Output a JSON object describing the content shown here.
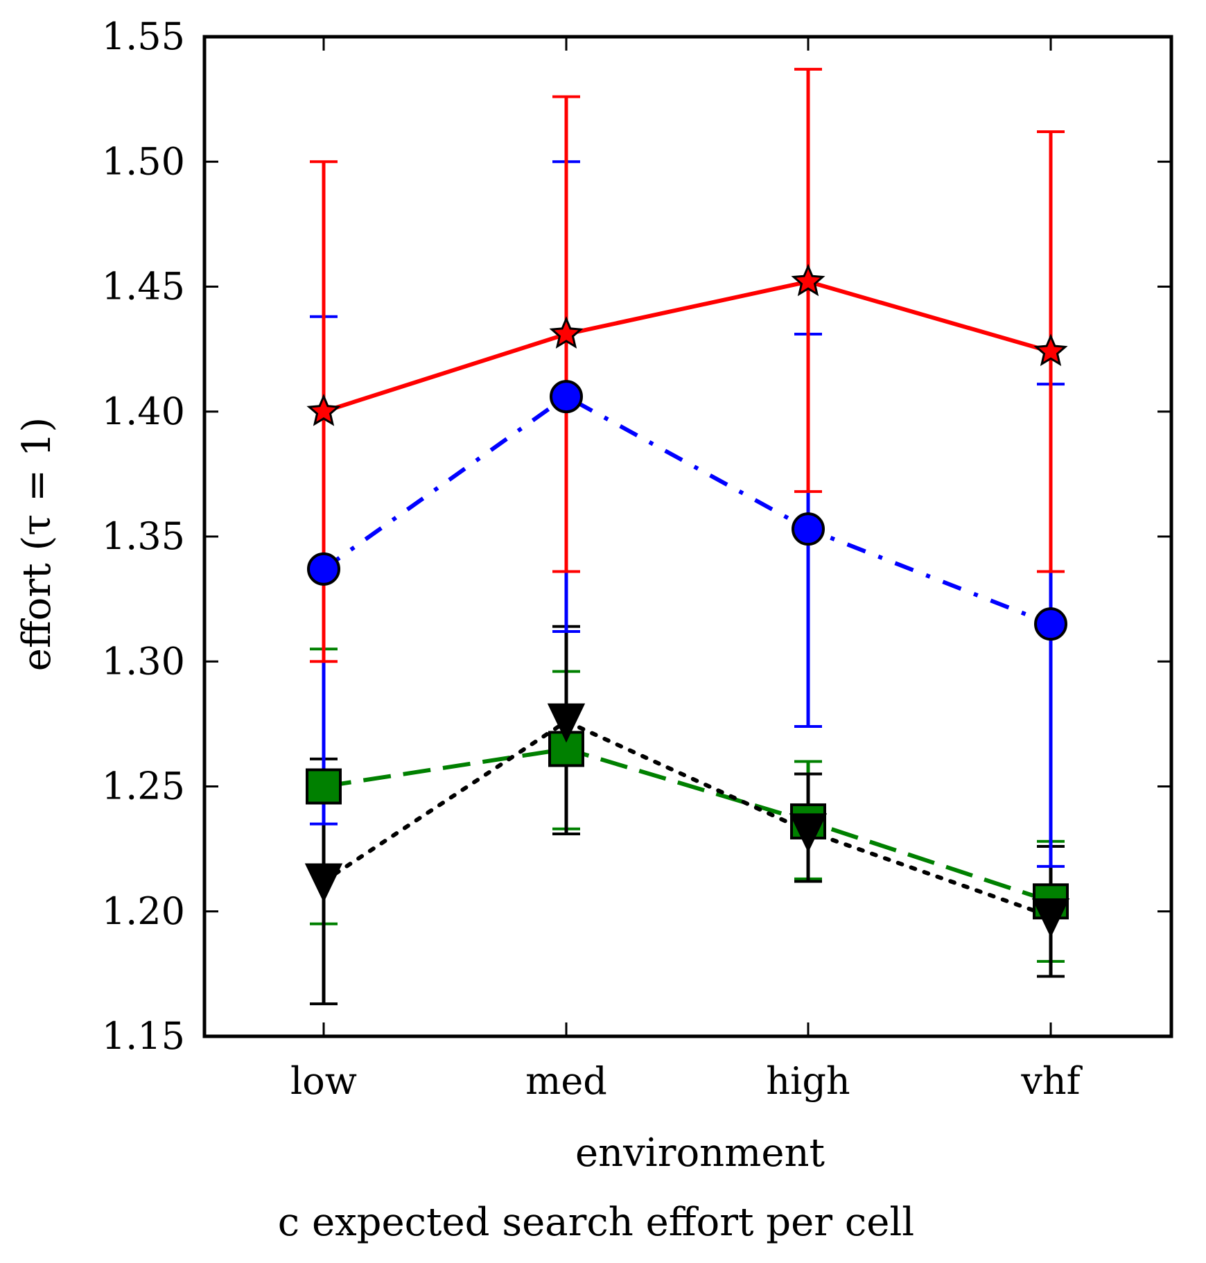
{
  "chart_data": {
    "type": "line",
    "title": "",
    "caption": "c  expected search effort per cell",
    "xlabel": "environment",
    "ylabel": "effort (τ = 1)",
    "categories": [
      "low",
      "med",
      "high",
      "vhf"
    ],
    "ylim": [
      1.15,
      1.55
    ],
    "yticks": [
      1.15,
      1.2,
      1.25,
      1.3,
      1.35,
      1.4,
      1.45,
      1.5,
      1.55
    ],
    "ytick_labels": [
      "1.15",
      "1.20",
      "1.25",
      "1.30",
      "1.35",
      "1.40",
      "1.45",
      "1.50",
      "1.55"
    ],
    "grid": false,
    "legend": "none",
    "series": [
      {
        "color": "#ff0000",
        "linestyle": "solid",
        "marker": "star",
        "values": [
          1.4,
          1.431,
          1.452,
          1.424
        ],
        "err_low": [
          1.3,
          1.336,
          1.368,
          1.336
        ],
        "err_high": [
          1.5,
          1.526,
          1.537,
          1.512
        ]
      },
      {
        "color": "#0000ff",
        "linestyle": "dashdot",
        "marker": "circle",
        "values": [
          1.337,
          1.406,
          1.353,
          1.315
        ],
        "err_low": [
          1.235,
          1.312,
          1.274,
          1.218
        ],
        "err_high": [
          1.438,
          1.5,
          1.431,
          1.411
        ]
      },
      {
        "color": "#000000",
        "linestyle": "dotted",
        "marker": "triangle-down",
        "values": [
          1.212,
          1.276,
          1.232,
          1.198
        ],
        "err_low": [
          1.163,
          1.231,
          1.212,
          1.174
        ],
        "err_high": [
          1.261,
          1.314,
          1.255,
          1.226
        ]
      },
      {
        "color": "#008000",
        "linestyle": "dashed",
        "marker": "square",
        "values": [
          1.25,
          1.265,
          1.236,
          1.204
        ],
        "err_low": [
          1.195,
          1.233,
          1.213,
          1.18
        ],
        "err_high": [
          1.305,
          1.296,
          1.26,
          1.228
        ]
      }
    ]
  }
}
